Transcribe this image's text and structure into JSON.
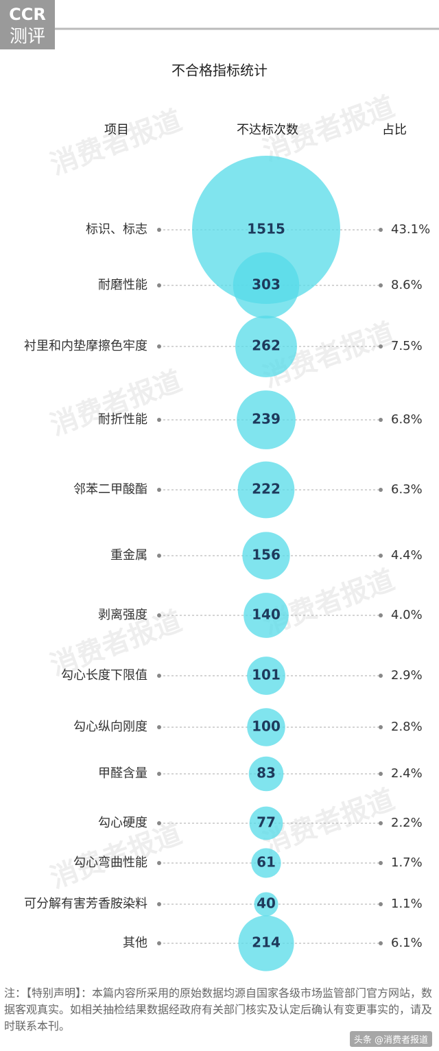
{
  "logo": {
    "brand": "CCR",
    "sub": "测评"
  },
  "watermark": "消费者报道",
  "chart_data": {
    "type": "bubble",
    "title": "不合格指标统计",
    "category_header": "项目",
    "categories": [
      "标识、标志",
      "耐磨性能",
      "衬里和内垫摩擦色牢度",
      "耐折性能",
      "邻苯二甲酸酯",
      "重金属",
      "剥离强度",
      "勾心长度下限值",
      "勾心纵向刚度",
      "甲醛含量",
      "勾心硬度",
      "勾心弯曲性能",
      "可分解有害芳香胺染料",
      "其他"
    ],
    "series": [
      {
        "name": "不达标次数",
        "color": "#55dbe8",
        "values": [
          1515,
          303,
          262,
          239,
          222,
          156,
          140,
          101,
          100,
          83,
          77,
          61,
          40,
          214
        ]
      },
      {
        "name": "占比",
        "values": [
          43.1,
          8.6,
          7.5,
          6.8,
          6.3,
          4.4,
          4.0,
          2.9,
          2.8,
          2.4,
          2.2,
          1.7,
          1.1,
          6.1
        ],
        "value_labels": [
          "43.1%",
          "8.6%",
          "7.5%",
          "6.8%",
          "6.3%",
          "4.4%",
          "4.0%",
          "2.9%",
          "2.8%",
          "2.4%",
          "2.2%",
          "1.7%",
          "1.1%",
          "6.1%"
        ]
      }
    ]
  },
  "note": "注：【特别声明】：本篇内容所采用的原始数据均源自国家各级市场监管部门官方网站，数据客观真实。如相关抽检结果数据经政府有关部门核实及认定后确认有变更事实的，请及时联系本刊。",
  "credit": "头条 @消费者报道"
}
